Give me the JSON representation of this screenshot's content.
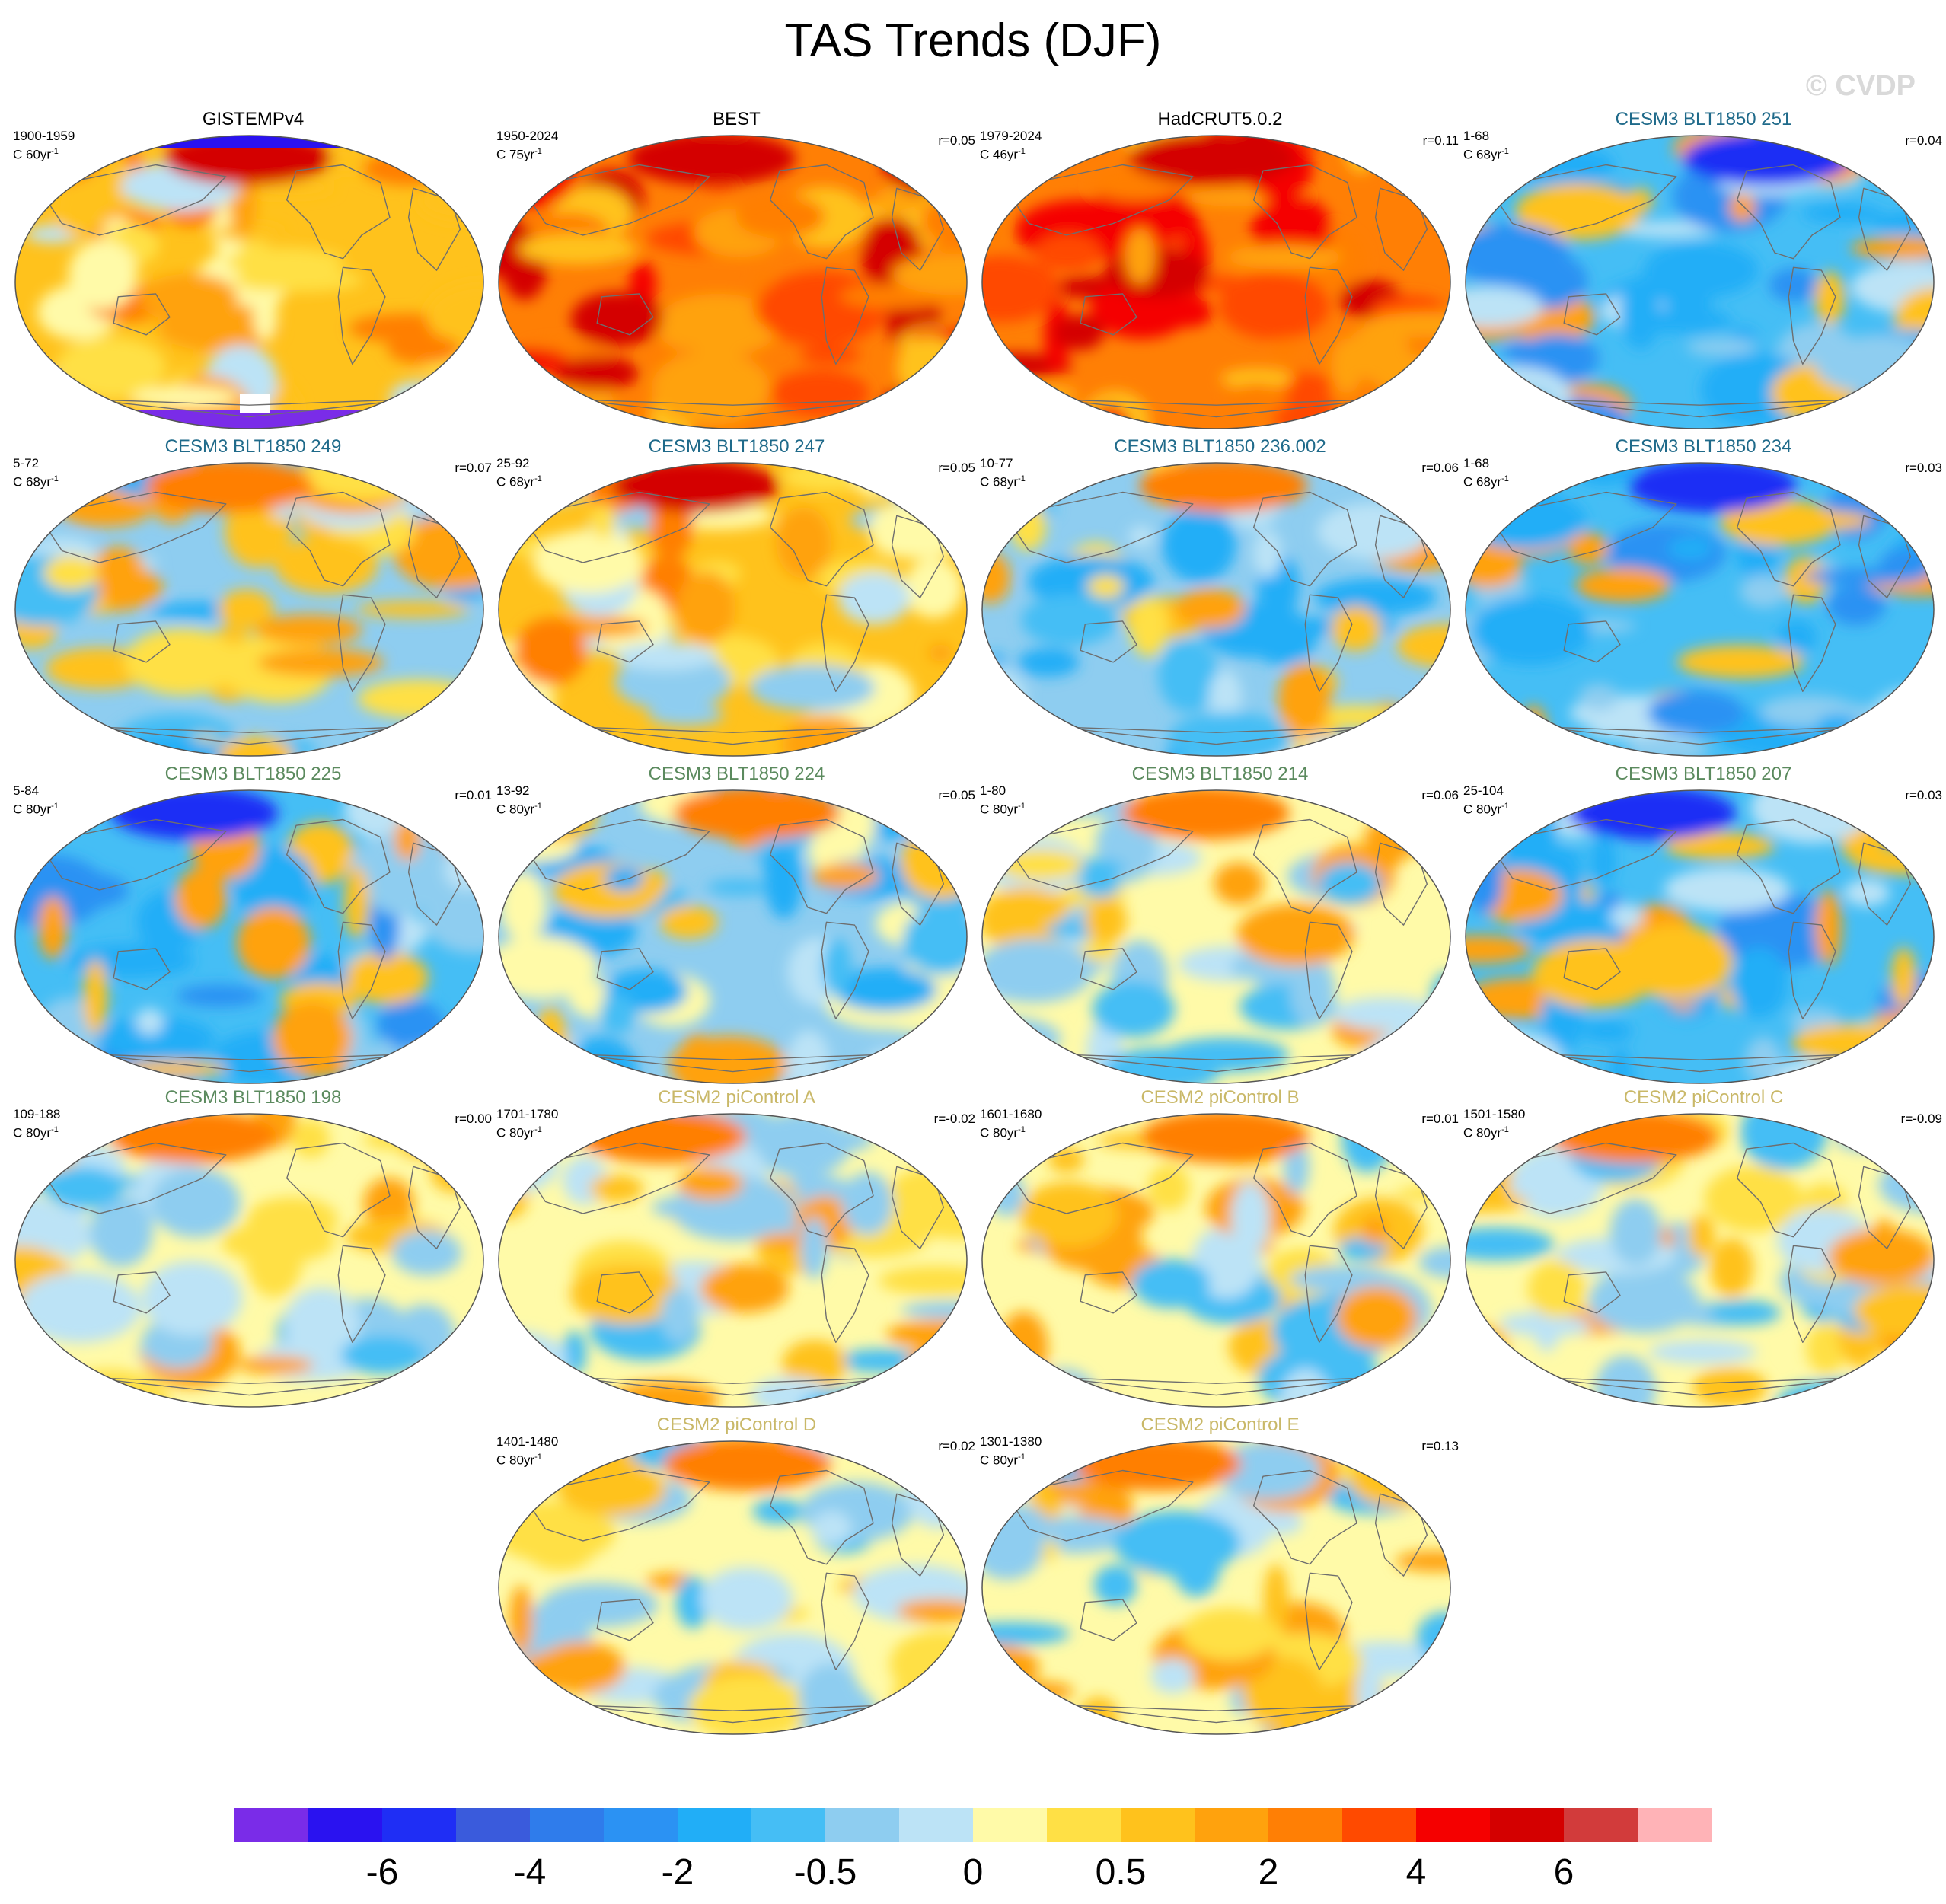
{
  "title": "TAS Trends (DJF)",
  "watermark": "© CVDP",
  "colors": {
    "ref_title": "#000000",
    "cesm3_a": "#1f6a8a",
    "cesm3_b": "#5b8a5e",
    "cesm2": "#c9b868",
    "coastline": "#6e6e6e"
  },
  "chart_data": {
    "type": "heatmap",
    "description_type": "map-panels",
    "colorbar": {
      "colors": [
        "#7a2ce8",
        "#2a12f0",
        "#1f2ef5",
        "#3a5bdc",
        "#2f7ceb",
        "#2b92f3",
        "#21aef7",
        "#45bef5",
        "#8ecdf0",
        "#bce3f6",
        "#fffaa8",
        "#ffe045",
        "#ffc21c",
        "#ffa20d",
        "#ff7f05",
        "#ff4a00",
        "#f50000",
        "#d40000",
        "#d23b3b",
        "#ffb3b7"
      ],
      "tick_labels": [
        "-6",
        "-4",
        "-2",
        "-0.5",
        "0",
        "0.5",
        "2",
        "4",
        "6"
      ]
    },
    "panels": [
      {
        "title": "GISTEMPv4",
        "period": "1900-1959",
        "units": "C 60yr",
        "units_sup": "-1",
        "r": "",
        "group": "ref",
        "base": "warm",
        "pattern": "gistemp"
      },
      {
        "title": "BEST",
        "period": "1950-2024",
        "units": "C 75yr",
        "units_sup": "-1",
        "r": "r=0.05",
        "group": "ref",
        "base": "hot",
        "pattern": "best"
      },
      {
        "title": "HadCRUT5.0.2",
        "period": "1979-2024",
        "units": "C 46yr",
        "units_sup": "-1",
        "r": "r=0.11",
        "group": "ref",
        "base": "hot",
        "pattern": "had"
      },
      {
        "title": "CESM3 BLT1850 251",
        "period": "1-68",
        "units": "C 68yr",
        "units_sup": "-1",
        "r": "r=0.04",
        "group": "cesm3_a",
        "base": "cold",
        "pattern": "c251"
      },
      {
        "title": "CESM3 BLT1850 249",
        "period": "5-72",
        "units": "C 68yr",
        "units_sup": "-1",
        "r": "r=0.07",
        "group": "cesm3_a",
        "base": "mixed",
        "pattern": "c249"
      },
      {
        "title": "CESM3 BLT1850 247",
        "period": "25-92",
        "units": "C 68yr",
        "units_sup": "-1",
        "r": "r=0.05",
        "group": "cesm3_a",
        "base": "mixwarm",
        "pattern": "c247"
      },
      {
        "title": "CESM3 BLT1850 236.002",
        "period": "10-77",
        "units": "C 68yr",
        "units_sup": "-1",
        "r": "r=0.06",
        "group": "cesm3_a",
        "base": "mixed",
        "pattern": "c236"
      },
      {
        "title": "CESM3 BLT1850 234",
        "period": "1-68",
        "units": "C 68yr",
        "units_sup": "-1",
        "r": "r=0.03",
        "group": "cesm3_a",
        "base": "cold",
        "pattern": "c234"
      },
      {
        "title": "CESM3 BLT1850 225",
        "period": "5-84",
        "units": "C 80yr",
        "units_sup": "-1",
        "r": "r=0.01",
        "group": "cesm3_b",
        "base": "cold",
        "pattern": "c225"
      },
      {
        "title": "CESM3 BLT1850 224",
        "period": "13-92",
        "units": "C 80yr",
        "units_sup": "-1",
        "r": "r=0.05",
        "group": "cesm3_b",
        "base": "mixcold",
        "pattern": "c224"
      },
      {
        "title": "CESM3 BLT1850 214",
        "period": "1-80",
        "units": "C 80yr",
        "units_sup": "-1",
        "r": "r=0.06",
        "group": "cesm3_b",
        "base": "neutral",
        "pattern": "c214"
      },
      {
        "title": "CESM3 BLT1850 207",
        "period": "25-104",
        "units": "C 80yr",
        "units_sup": "-1",
        "r": "r=0.03",
        "group": "cesm3_b",
        "base": "cold",
        "pattern": "c207"
      },
      {
        "title": "CESM3 BLT1850 198",
        "period": "109-188",
        "units": "C 80yr",
        "units_sup": "-1",
        "r": "r=0.00",
        "group": "cesm3_b",
        "base": "neutral",
        "pattern": "c198"
      },
      {
        "title": "CESM2 piControl A",
        "period": "1701-1780",
        "units": "C 80yr",
        "units_sup": "-1",
        "r": "r=-0.02",
        "group": "cesm2",
        "base": "neutral",
        "pattern": "pa"
      },
      {
        "title": "CESM2 piControl B",
        "period": "1601-1680",
        "units": "C 80yr",
        "units_sup": "-1",
        "r": "r=0.01",
        "group": "cesm2",
        "base": "neutral",
        "pattern": "pb"
      },
      {
        "title": "CESM2 piControl C",
        "period": "1501-1580",
        "units": "C 80yr",
        "units_sup": "-1",
        "r": "r=-0.09",
        "group": "cesm2",
        "base": "neutral",
        "pattern": "pc"
      },
      {
        "title": "CESM2 piControl D",
        "period": "1401-1480",
        "units": "C 80yr",
        "units_sup": "-1",
        "r": "r=0.02",
        "group": "cesm2",
        "base": "neutral",
        "pattern": "pd"
      },
      {
        "title": "CESM2 piControl E",
        "period": "1301-1380",
        "units": "C 80yr",
        "units_sup": "-1",
        "r": "r=0.13",
        "group": "cesm2",
        "base": "neutral",
        "pattern": "pe"
      }
    ]
  }
}
